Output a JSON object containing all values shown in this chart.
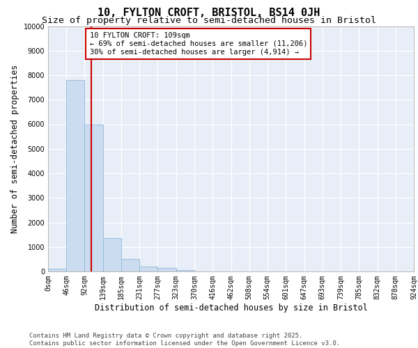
{
  "title": "10, FYLTON CROFT, BRISTOL, BS14 0JH",
  "subtitle": "Size of property relative to semi-detached houses in Bristol",
  "xlabel": "Distribution of semi-detached houses by size in Bristol",
  "ylabel": "Number of semi-detached properties",
  "bin_labels": [
    "0sqm",
    "46sqm",
    "92sqm",
    "139sqm",
    "185sqm",
    "231sqm",
    "277sqm",
    "323sqm",
    "370sqm",
    "416sqm",
    "462sqm",
    "508sqm",
    "554sqm",
    "601sqm",
    "647sqm",
    "693sqm",
    "739sqm",
    "785sqm",
    "832sqm",
    "878sqm",
    "924sqm"
  ],
  "bar_values": [
    100,
    7800,
    6000,
    1350,
    500,
    200,
    130,
    50,
    10,
    0,
    0,
    0,
    0,
    0,
    0,
    0,
    0,
    0,
    0,
    0
  ],
  "bar_color": "#ccdcf0",
  "bar_edge_color": "#90b8d8",
  "vline_color": "#cc0000",
  "annotation_text": "10 FYLTON CROFT: 109sqm\n← 69% of semi-detached houses are smaller (11,206)\n30% of semi-detached houses are larger (4,914) →",
  "annotation_box_color": "#cc0000",
  "ylim": [
    0,
    10000
  ],
  "yticks": [
    0,
    1000,
    2000,
    3000,
    4000,
    5000,
    6000,
    7000,
    8000,
    9000,
    10000
  ],
  "xlim": [
    0,
    924
  ],
  "bin_edges": [
    0,
    46,
    92,
    139,
    185,
    231,
    277,
    323,
    370,
    416,
    462,
    508,
    554,
    601,
    647,
    693,
    739,
    785,
    832,
    878,
    924
  ],
  "property_x": 109,
  "footer_text": "Contains HM Land Registry data © Crown copyright and database right 2025.\nContains public sector information licensed under the Open Government Licence v3.0.",
  "bg_color": "#e8eef7",
  "title_fontsize": 11,
  "subtitle_fontsize": 9.5,
  "axis_label_fontsize": 8.5,
  "tick_fontsize": 7,
  "annotation_fontsize": 7.5,
  "footer_fontsize": 6.5
}
